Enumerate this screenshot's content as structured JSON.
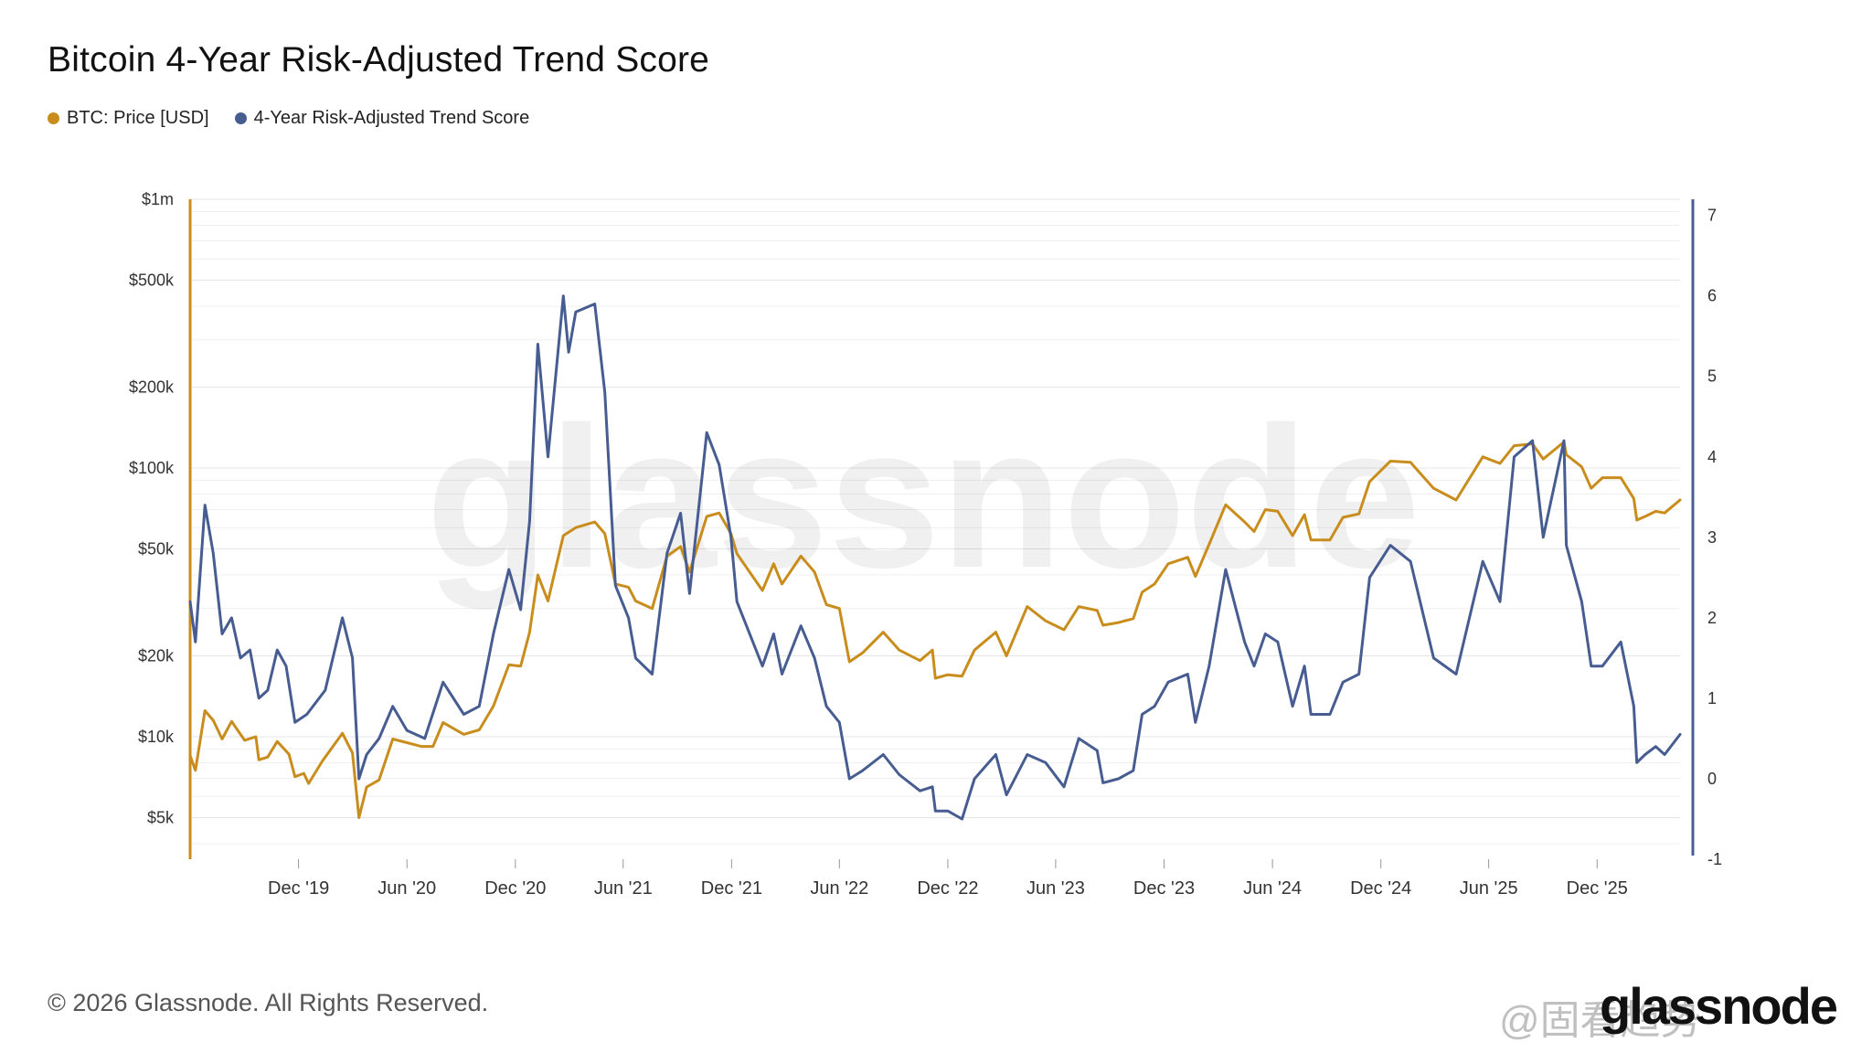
{
  "title": "Bitcoin 4-Year Risk-Adjusted Trend Score",
  "legend": [
    {
      "label": "BTC: Price [USD]",
      "color": "#c98d1d"
    },
    {
      "label": "4-Year Risk-Adjusted Trend Score",
      "color": "#475d91"
    }
  ],
  "footer": "© 2026 Glassnode. All Rights Reserved.",
  "brand": "glassnode",
  "watermark_text": "glassnode",
  "social_watermark": "@固看趋势",
  "chart_data": {
    "type": "line",
    "title": "Bitcoin 4-Year Risk-Adjusted Trend Score",
    "x_tick_labels": [
      "Dec '19",
      "Jun '20",
      "Dec '20",
      "Jun '21",
      "Dec '21",
      "Jun '22",
      "Dec '22",
      "Jun '23",
      "Dec '23",
      "Jun '24",
      "Dec '24",
      "Jun '25",
      "Dec '25"
    ],
    "x_range": [
      "2019-06-01",
      "2026-04-20"
    ],
    "left_axis": {
      "scale": "log",
      "ticks": [
        5000,
        10000,
        20000,
        50000,
        100000,
        200000,
        500000,
        1000000
      ],
      "tick_labels": [
        "$5k",
        "$10k",
        "$20k",
        "$50k",
        "$100k",
        "$200k",
        "$500k",
        "$1m"
      ],
      "range": [
        3500,
        1000000
      ]
    },
    "right_axis": {
      "scale": "linear",
      "ticks": [
        -1,
        0,
        1,
        2,
        3,
        4,
        5,
        6,
        7
      ],
      "tick_labels": [
        "-1",
        "0",
        "1",
        "2",
        "3",
        "4",
        "5",
        "6",
        "7"
      ],
      "range": [
        -1,
        7.2
      ]
    },
    "grid": true,
    "series": [
      {
        "name": "BTC: Price [USD]",
        "axis": "left",
        "color": "#c98d1d",
        "points": [
          [
            "2019-06-01",
            8500
          ],
          [
            "2019-06-10",
            7500
          ],
          [
            "2019-06-26",
            12500
          ],
          [
            "2019-07-10",
            11500
          ],
          [
            "2019-07-25",
            9800
          ],
          [
            "2019-08-10",
            11400
          ],
          [
            "2019-09-01",
            9700
          ],
          [
            "2019-09-20",
            10000
          ],
          [
            "2019-09-25",
            8200
          ],
          [
            "2019-10-10",
            8400
          ],
          [
            "2019-10-26",
            9600
          ],
          [
            "2019-11-15",
            8600
          ],
          [
            "2019-11-25",
            7100
          ],
          [
            "2019-12-10",
            7300
          ],
          [
            "2019-12-18",
            6700
          ],
          [
            "2020-01-10",
            8100
          ],
          [
            "2020-02-13",
            10300
          ],
          [
            "2020-03-01",
            8700
          ],
          [
            "2020-03-12",
            5000
          ],
          [
            "2020-03-25",
            6500
          ],
          [
            "2020-04-15",
            6900
          ],
          [
            "2020-05-08",
            9800
          ],
          [
            "2020-06-01",
            9500
          ],
          [
            "2020-06-25",
            9200
          ],
          [
            "2020-07-15",
            9200
          ],
          [
            "2020-08-01",
            11300
          ],
          [
            "2020-09-05",
            10200
          ],
          [
            "2020-10-01",
            10600
          ],
          [
            "2020-10-25",
            13000
          ],
          [
            "2020-11-20",
            18500
          ],
          [
            "2020-12-10",
            18300
          ],
          [
            "2020-12-25",
            24500
          ],
          [
            "2021-01-08",
            40000
          ],
          [
            "2021-01-25",
            32000
          ],
          [
            "2021-02-20",
            56000
          ],
          [
            "2021-03-13",
            60000
          ],
          [
            "2021-04-14",
            63000
          ],
          [
            "2021-05-01",
            57000
          ],
          [
            "2021-05-19",
            37000
          ],
          [
            "2021-06-10",
            36000
          ],
          [
            "2021-06-22",
            32000
          ],
          [
            "2021-07-20",
            30000
          ],
          [
            "2021-08-14",
            47000
          ],
          [
            "2021-09-06",
            51000
          ],
          [
            "2021-09-21",
            41000
          ],
          [
            "2021-10-20",
            66000
          ],
          [
            "2021-11-10",
            68000
          ],
          [
            "2021-11-30",
            57000
          ],
          [
            "2021-12-10",
            48000
          ],
          [
            "2022-01-22",
            35000
          ],
          [
            "2022-02-10",
            44000
          ],
          [
            "2022-02-24",
            37000
          ],
          [
            "2022-03-28",
            47000
          ],
          [
            "2022-04-20",
            41000
          ],
          [
            "2022-05-10",
            31000
          ],
          [
            "2022-06-01",
            30000
          ],
          [
            "2022-06-18",
            19000
          ],
          [
            "2022-07-10",
            20500
          ],
          [
            "2022-08-14",
            24500
          ],
          [
            "2022-09-10",
            21000
          ],
          [
            "2022-10-15",
            19200
          ],
          [
            "2022-11-05",
            21000
          ],
          [
            "2022-11-10",
            16500
          ],
          [
            "2022-12-01",
            17000
          ],
          [
            "2022-12-25",
            16800
          ],
          [
            "2023-01-15",
            21000
          ],
          [
            "2023-02-20",
            24500
          ],
          [
            "2023-03-10",
            20000
          ],
          [
            "2023-04-14",
            30500
          ],
          [
            "2023-05-15",
            27000
          ],
          [
            "2023-06-15",
            25000
          ],
          [
            "2023-07-10",
            30500
          ],
          [
            "2023-08-10",
            29500
          ],
          [
            "2023-08-20",
            26000
          ],
          [
            "2023-09-15",
            26600
          ],
          [
            "2023-10-10",
            27500
          ],
          [
            "2023-10-25",
            34500
          ],
          [
            "2023-11-15",
            37000
          ],
          [
            "2023-12-08",
            44000
          ],
          [
            "2024-01-10",
            46500
          ],
          [
            "2024-01-23",
            39500
          ],
          [
            "2024-02-15",
            52000
          ],
          [
            "2024-03-14",
            73000
          ],
          [
            "2024-04-15",
            63000
          ],
          [
            "2024-05-01",
            58000
          ],
          [
            "2024-05-20",
            70000
          ],
          [
            "2024-06-10",
            69000
          ],
          [
            "2024-07-05",
            56000
          ],
          [
            "2024-07-25",
            67000
          ],
          [
            "2024-08-05",
            54000
          ],
          [
            "2024-09-06",
            54000
          ],
          [
            "2024-09-28",
            65500
          ],
          [
            "2024-10-25",
            67500
          ],
          [
            "2024-11-12",
            89000
          ],
          [
            "2024-12-17",
            106000
          ],
          [
            "2025-01-20",
            105000
          ],
          [
            "2025-02-28",
            84000
          ],
          [
            "2025-04-07",
            76000
          ],
          [
            "2025-05-22",
            110000
          ],
          [
            "2025-06-20",
            104000
          ],
          [
            "2025-07-14",
            121000
          ],
          [
            "2025-08-14",
            123000
          ],
          [
            "2025-09-01",
            108000
          ],
          [
            "2025-10-06",
            125000
          ],
          [
            "2025-10-10",
            112000
          ],
          [
            "2025-11-05",
            101000
          ],
          [
            "2025-11-21",
            84000
          ],
          [
            "2025-12-10",
            92000
          ],
          [
            "2026-01-10",
            92000
          ],
          [
            "2026-02-01",
            77000
          ],
          [
            "2026-02-06",
            64000
          ],
          [
            "2026-02-20",
            66000
          ],
          [
            "2026-03-10",
            69000
          ],
          [
            "2026-03-25",
            68000
          ],
          [
            "2026-04-20",
            76000
          ]
        ]
      },
      {
        "name": "4-Year Risk-Adjusted Trend Score",
        "axis": "right",
        "color": "#475d91",
        "points": [
          [
            "2019-06-01",
            2.2
          ],
          [
            "2019-06-10",
            1.7
          ],
          [
            "2019-06-26",
            3.4
          ],
          [
            "2019-07-10",
            2.8
          ],
          [
            "2019-07-25",
            1.8
          ],
          [
            "2019-08-10",
            2.0
          ],
          [
            "2019-08-25",
            1.5
          ],
          [
            "2019-09-10",
            1.6
          ],
          [
            "2019-09-25",
            1.0
          ],
          [
            "2019-10-10",
            1.1
          ],
          [
            "2019-10-26",
            1.6
          ],
          [
            "2019-11-10",
            1.4
          ],
          [
            "2019-11-25",
            0.7
          ],
          [
            "2019-12-15",
            0.8
          ],
          [
            "2020-01-15",
            1.1
          ],
          [
            "2020-02-13",
            2.0
          ],
          [
            "2020-03-01",
            1.5
          ],
          [
            "2020-03-12",
            0.0
          ],
          [
            "2020-03-25",
            0.3
          ],
          [
            "2020-04-15",
            0.5
          ],
          [
            "2020-05-08",
            0.9
          ],
          [
            "2020-06-01",
            0.6
          ],
          [
            "2020-07-01",
            0.5
          ],
          [
            "2020-08-01",
            1.2
          ],
          [
            "2020-09-05",
            0.8
          ],
          [
            "2020-10-01",
            0.9
          ],
          [
            "2020-10-25",
            1.8
          ],
          [
            "2020-11-20",
            2.6
          ],
          [
            "2020-12-10",
            2.1
          ],
          [
            "2020-12-25",
            3.2
          ],
          [
            "2021-01-08",
            5.4
          ],
          [
            "2021-01-25",
            4.0
          ],
          [
            "2021-02-20",
            6.0
          ],
          [
            "2021-03-01",
            5.3
          ],
          [
            "2021-03-13",
            5.8
          ],
          [
            "2021-04-14",
            5.9
          ],
          [
            "2021-05-01",
            4.8
          ],
          [
            "2021-05-19",
            2.4
          ],
          [
            "2021-06-10",
            2.0
          ],
          [
            "2021-06-22",
            1.5
          ],
          [
            "2021-07-20",
            1.3
          ],
          [
            "2021-08-14",
            2.8
          ],
          [
            "2021-09-06",
            3.3
          ],
          [
            "2021-09-21",
            2.3
          ],
          [
            "2021-10-20",
            4.3
          ],
          [
            "2021-11-10",
            3.9
          ],
          [
            "2021-11-30",
            3.0
          ],
          [
            "2021-12-10",
            2.2
          ],
          [
            "2022-01-22",
            1.4
          ],
          [
            "2022-02-10",
            1.8
          ],
          [
            "2022-02-24",
            1.3
          ],
          [
            "2022-03-28",
            1.9
          ],
          [
            "2022-04-20",
            1.5
          ],
          [
            "2022-05-10",
            0.9
          ],
          [
            "2022-06-01",
            0.7
          ],
          [
            "2022-06-18",
            0.0
          ],
          [
            "2022-07-10",
            0.1
          ],
          [
            "2022-08-14",
            0.3
          ],
          [
            "2022-09-10",
            0.05
          ],
          [
            "2022-10-15",
            -0.15
          ],
          [
            "2022-11-05",
            -0.1
          ],
          [
            "2022-11-10",
            -0.4
          ],
          [
            "2022-12-01",
            -0.4
          ],
          [
            "2022-12-25",
            -0.5
          ],
          [
            "2023-01-15",
            0.0
          ],
          [
            "2023-02-20",
            0.3
          ],
          [
            "2023-03-10",
            -0.2
          ],
          [
            "2023-04-14",
            0.3
          ],
          [
            "2023-05-15",
            0.2
          ],
          [
            "2023-06-15",
            -0.1
          ],
          [
            "2023-07-10",
            0.5
          ],
          [
            "2023-08-10",
            0.35
          ],
          [
            "2023-08-20",
            -0.05
          ],
          [
            "2023-09-15",
            0.0
          ],
          [
            "2023-10-10",
            0.1
          ],
          [
            "2023-10-25",
            0.8
          ],
          [
            "2023-11-15",
            0.9
          ],
          [
            "2023-12-08",
            1.2
          ],
          [
            "2024-01-10",
            1.3
          ],
          [
            "2024-01-23",
            0.7
          ],
          [
            "2024-02-15",
            1.4
          ],
          [
            "2024-03-14",
            2.6
          ],
          [
            "2024-04-15",
            1.7
          ],
          [
            "2024-05-01",
            1.4
          ],
          [
            "2024-05-20",
            1.8
          ],
          [
            "2024-06-10",
            1.7
          ],
          [
            "2024-07-05",
            0.9
          ],
          [
            "2024-07-25",
            1.4
          ],
          [
            "2024-08-05",
            0.8
          ],
          [
            "2024-09-06",
            0.8
          ],
          [
            "2024-09-28",
            1.2
          ],
          [
            "2024-10-25",
            1.3
          ],
          [
            "2024-11-12",
            2.5
          ],
          [
            "2024-12-17",
            2.9
          ],
          [
            "2025-01-20",
            2.7
          ],
          [
            "2025-02-28",
            1.5
          ],
          [
            "2025-04-07",
            1.3
          ],
          [
            "2025-05-22",
            2.7
          ],
          [
            "2025-06-20",
            2.2
          ],
          [
            "2025-07-14",
            4.0
          ],
          [
            "2025-08-14",
            4.2
          ],
          [
            "2025-09-01",
            3.0
          ],
          [
            "2025-10-06",
            4.2
          ],
          [
            "2025-10-10",
            2.9
          ],
          [
            "2025-11-05",
            2.2
          ],
          [
            "2025-11-21",
            1.4
          ],
          [
            "2025-12-10",
            1.4
          ],
          [
            "2026-01-10",
            1.7
          ],
          [
            "2026-02-01",
            0.9
          ],
          [
            "2026-02-06",
            0.2
          ],
          [
            "2026-02-20",
            0.3
          ],
          [
            "2026-03-10",
            0.4
          ],
          [
            "2026-03-25",
            0.3
          ],
          [
            "2026-04-20",
            0.55
          ]
        ]
      }
    ]
  }
}
